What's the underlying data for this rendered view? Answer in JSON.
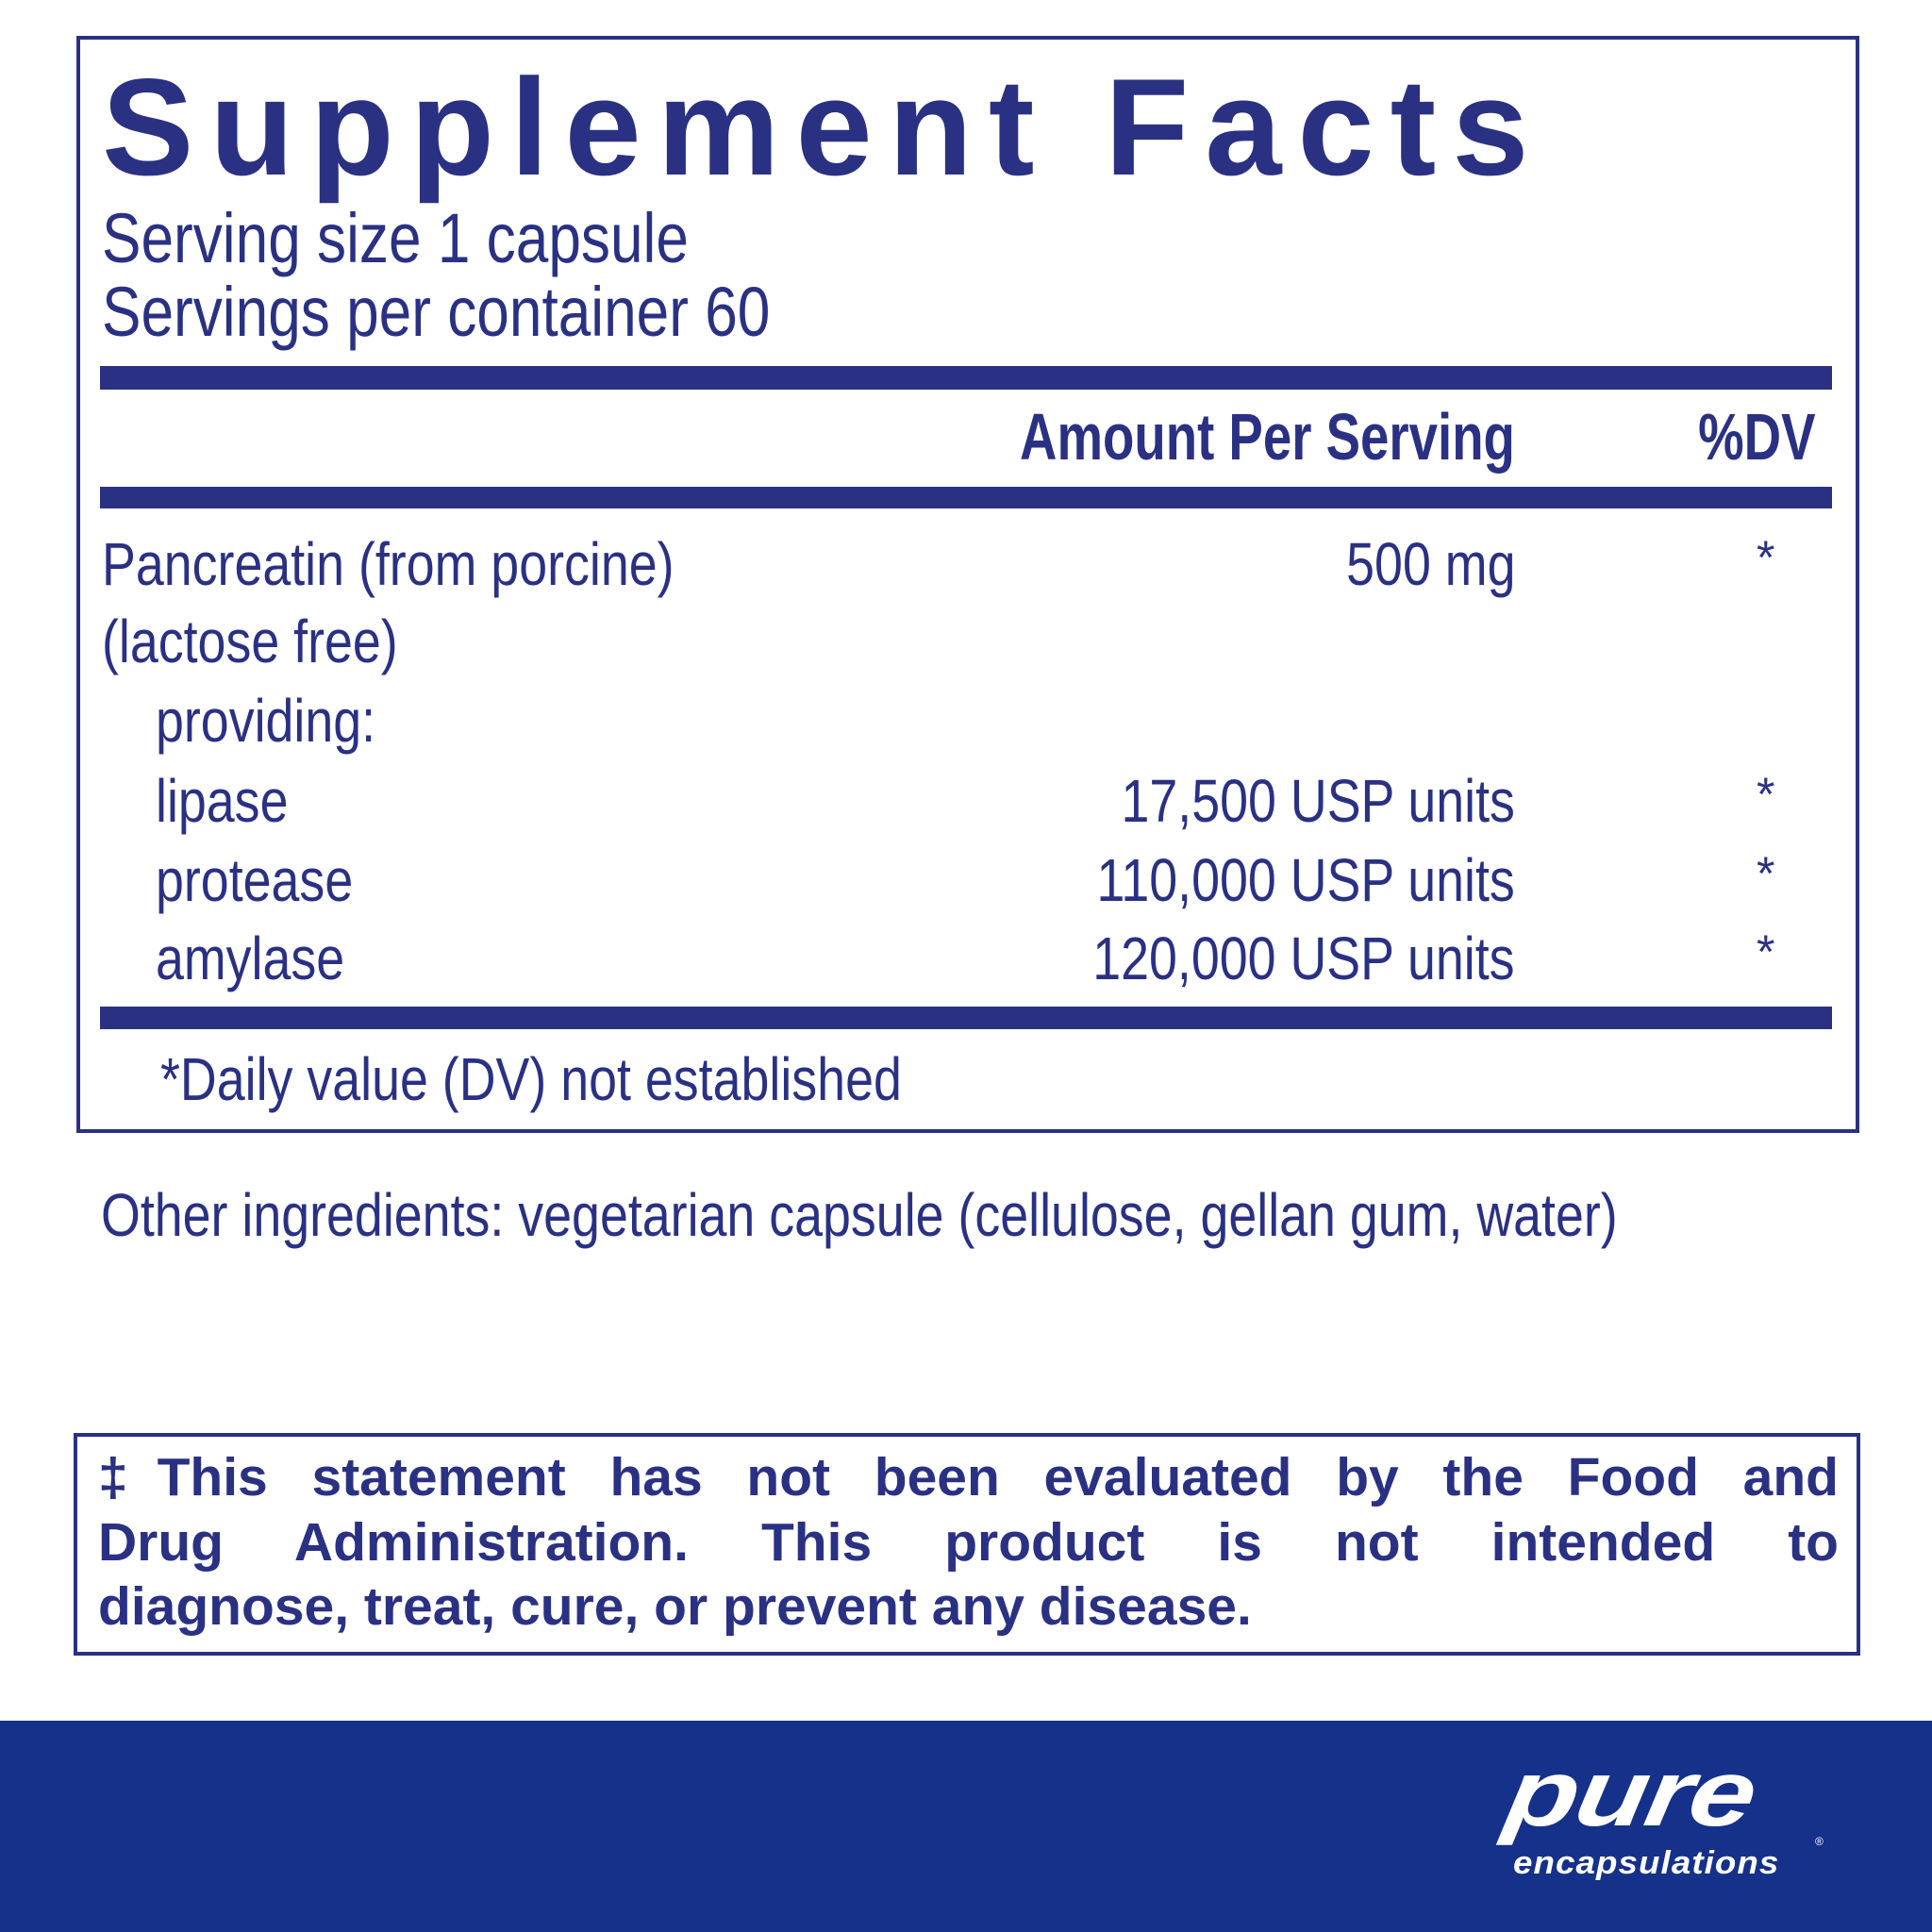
{
  "facts": {
    "title": "Supplement Facts",
    "serving_size": "Serving size  1 capsule",
    "servings_per_container": "Servings per container  60",
    "col_amount": "Amount Per Serving",
    "col_dv": "%DV",
    "rows": [
      {
        "name": "Pancreatin (from porcine)",
        "amount": "500 mg",
        "dv": "*"
      },
      {
        "name": "(lactose free)",
        "amount": "",
        "dv": ""
      },
      {
        "name": "providing:",
        "amount": "",
        "dv": ""
      },
      {
        "name": "lipase",
        "amount": "17,500 USP units",
        "dv": "*"
      },
      {
        "name": "protease",
        "amount": "110,000 USP units",
        "dv": "*"
      },
      {
        "name": "amylase",
        "amount": "120,000 USP units",
        "dv": "*"
      }
    ],
    "footnote": "*Daily value (DV) not established"
  },
  "other_ingredients": "Other ingredients: vegetarian capsule (cellulose, gellan gum, water)",
  "disclaimer_lines": [
    "‡This statement has not been evaluated by the Food and",
    "Drug Administration. This product is not intended to",
    "diagnose, treat, cure, or prevent any disease."
  ],
  "brand": {
    "logo_top": "pure",
    "logo_bottom": "encapsulations",
    "registered": "®"
  },
  "colors": {
    "text": "#2a3183",
    "band": "#16318a"
  }
}
